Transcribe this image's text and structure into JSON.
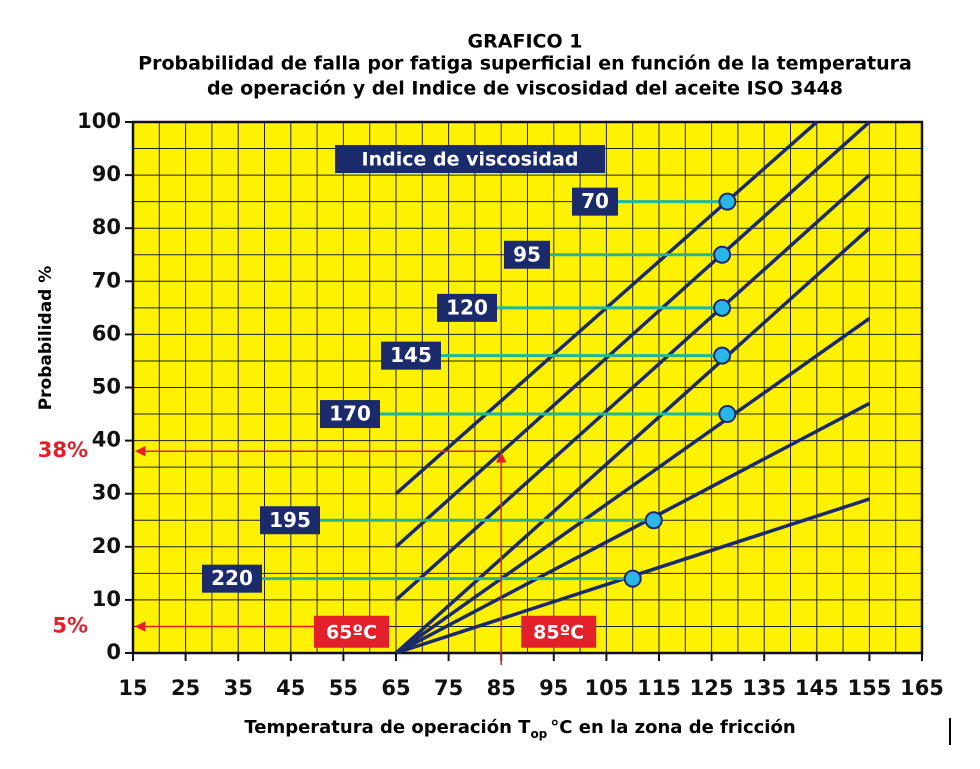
{
  "chart_data": {
    "type": "line",
    "title": "GRAFICO 1",
    "subtitle": [
      "Probabilidad de falla por fatiga superficial en función de la temperatura",
      "de operación y del Indice de viscosidad del aceite ISO 3448"
    ],
    "xlabel": [
      "Temperatura de operación T",
      "op",
      "°C en la zona de fricción"
    ],
    "ylabel": "Probabilidad %",
    "legend_title": "Indice de viscosidad",
    "xlim": [
      15,
      165
    ],
    "xticks": [
      15,
      25,
      35,
      45,
      55,
      65,
      75,
      85,
      95,
      105,
      115,
      125,
      135,
      145,
      155,
      165
    ],
    "xminor": [
      20,
      30,
      40,
      50,
      60,
      70,
      80,
      90,
      100,
      110,
      120,
      130,
      140,
      150,
      160
    ],
    "ylim": [
      0,
      100
    ],
    "yticks": [
      0,
      10,
      20,
      30,
      40,
      50,
      60,
      70,
      80,
      90,
      100
    ],
    "yminor": [
      5,
      15,
      25,
      35,
      45,
      55,
      65,
      75,
      85,
      95
    ],
    "grid": true,
    "background": "#fff200",
    "marker_color": "#29b6e8",
    "leader_color": "#22b59a",
    "series": [
      {
        "name": "70",
        "color": "#1b2a6b",
        "x": [
          65,
          145
        ],
        "values": [
          30,
          100
        ],
        "marker_x": 128,
        "marker_y": 85
      },
      {
        "name": "95",
        "color": "#1b2a6b",
        "x": [
          65,
          155
        ],
        "values": [
          20,
          100
        ],
        "marker_x": 127,
        "marker_y": 75
      },
      {
        "name": "120",
        "color": "#1b2a6b",
        "x": [
          65,
          155
        ],
        "values": [
          10,
          90
        ],
        "marker_x": 127,
        "marker_y": 65
      },
      {
        "name": "145",
        "color": "#1b2a6b",
        "x": [
          65,
          155
        ],
        "values": [
          0,
          80
        ],
        "marker_x": 127,
        "marker_y": 56
      },
      {
        "name": "170",
        "color": "#1b2a6b",
        "x": [
          65,
          155
        ],
        "values": [
          0,
          63
        ],
        "marker_x": 128,
        "marker_y": 45
      },
      {
        "name": "195",
        "color": "#1b2a6b",
        "x": [
          65,
          155
        ],
        "values": [
          0,
          47
        ],
        "marker_x": 114,
        "marker_y": 25
      },
      {
        "name": "220",
        "color": "#1b2a6b",
        "x": [
          65,
          155
        ],
        "values": [
          0,
          29
        ],
        "marker_x": 110,
        "marker_y": 14
      }
    ],
    "y_annotations": [
      {
        "text": "38%",
        "y": 38,
        "x_from": 85
      },
      {
        "text": "5%",
        "y": 5,
        "x_from": 51
      }
    ],
    "x_annotations": [
      {
        "text": "65ºC",
        "x": 65
      },
      {
        "text": "85ºC",
        "x": 85
      }
    ],
    "annotation_color": "#e3202a"
  }
}
